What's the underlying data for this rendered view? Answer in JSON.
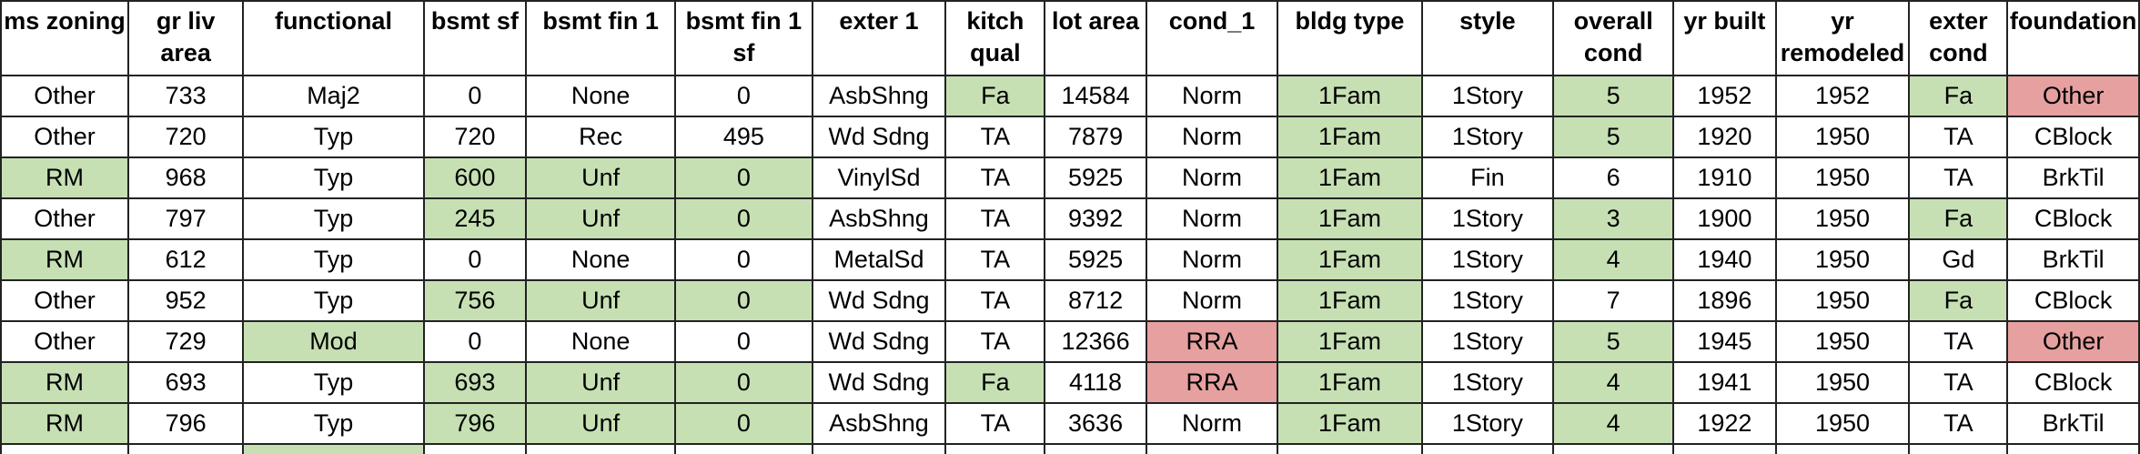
{
  "colors": {
    "highlight_green": "#c6e0b4",
    "highlight_red": "#e6a0a0",
    "border": "#222222"
  },
  "table": {
    "headers": [
      "ms zoning",
      "gr liv area",
      "functional",
      "bsmt sf",
      "bsmt fin 1",
      "bsmt fin 1 sf",
      "exter 1",
      "kitch qual",
      "lot area",
      "cond_1",
      "bldg type",
      "style",
      "overall cond",
      "yr built",
      "yr remodeled",
      "exter cond",
      "foundation"
    ],
    "rows": [
      {
        "cells": [
          "Other",
          "733",
          "Maj2",
          "0",
          "None",
          "0",
          "AsbShng",
          "Fa",
          "14584",
          "Norm",
          "1Fam",
          "1Story",
          "5",
          "1952",
          "1952",
          "Fa",
          "Other"
        ],
        "highlights": [
          "",
          "",
          "",
          "",
          "",
          "",
          "",
          "green",
          "",
          "",
          "green",
          "",
          "green",
          "",
          "",
          "green",
          "red"
        ]
      },
      {
        "cells": [
          "Other",
          "720",
          "Typ",
          "720",
          "Rec",
          "495",
          "Wd Sdng",
          "TA",
          "7879",
          "Norm",
          "1Fam",
          "1Story",
          "5",
          "1920",
          "1950",
          "TA",
          "CBlock"
        ],
        "highlights": [
          "",
          "",
          "",
          "",
          "",
          "",
          "",
          "",
          "",
          "",
          "green",
          "",
          "green",
          "",
          "",
          "",
          ""
        ]
      },
      {
        "cells": [
          "RM",
          "968",
          "Typ",
          "600",
          "Unf",
          "0",
          "VinylSd",
          "TA",
          "5925",
          "Norm",
          "1Fam",
          "Fin",
          "6",
          "1910",
          "1950",
          "TA",
          "BrkTil"
        ],
        "highlights": [
          "green",
          "",
          "",
          "green",
          "green",
          "green",
          "",
          "",
          "",
          "",
          "green",
          "",
          "",
          "",
          "",
          "",
          ""
        ]
      },
      {
        "cells": [
          "Other",
          "797",
          "Typ",
          "245",
          "Unf",
          "0",
          "AsbShng",
          "TA",
          "9392",
          "Norm",
          "1Fam",
          "1Story",
          "3",
          "1900",
          "1950",
          "Fa",
          "CBlock"
        ],
        "highlights": [
          "",
          "",
          "",
          "green",
          "green",
          "green",
          "",
          "",
          "",
          "",
          "green",
          "",
          "green",
          "",
          "",
          "green",
          ""
        ]
      },
      {
        "cells": [
          "RM",
          "612",
          "Typ",
          "0",
          "None",
          "0",
          "MetalSd",
          "TA",
          "5925",
          "Norm",
          "1Fam",
          "1Story",
          "4",
          "1940",
          "1950",
          "Gd",
          "BrkTil"
        ],
        "highlights": [
          "green",
          "",
          "",
          "",
          "",
          "",
          "",
          "",
          "",
          "",
          "green",
          "",
          "green",
          "",
          "",
          "",
          ""
        ]
      },
      {
        "cells": [
          "Other",
          "952",
          "Typ",
          "756",
          "Unf",
          "0",
          "Wd Sdng",
          "TA",
          "8712",
          "Norm",
          "1Fam",
          "1Story",
          "7",
          "1896",
          "1950",
          "Fa",
          "CBlock"
        ],
        "highlights": [
          "",
          "",
          "",
          "green",
          "green",
          "green",
          "",
          "",
          "",
          "",
          "green",
          "",
          "",
          "",
          "",
          "green",
          ""
        ]
      },
      {
        "cells": [
          "Other",
          "729",
          "Mod",
          "0",
          "None",
          "0",
          "Wd Sdng",
          "TA",
          "12366",
          "RRA",
          "1Fam",
          "1Story",
          "5",
          "1945",
          "1950",
          "TA",
          "Other"
        ],
        "highlights": [
          "",
          "",
          "green",
          "",
          "",
          "",
          "",
          "",
          "",
          "red",
          "green",
          "",
          "green",
          "",
          "",
          "",
          "red"
        ]
      },
      {
        "cells": [
          "RM",
          "693",
          "Typ",
          "693",
          "Unf",
          "0",
          "Wd Sdng",
          "Fa",
          "4118",
          "RRA",
          "1Fam",
          "1Story",
          "4",
          "1941",
          "1950",
          "TA",
          "CBlock"
        ],
        "highlights": [
          "green",
          "",
          "",
          "green",
          "green",
          "green",
          "",
          "green",
          "",
          "red",
          "green",
          "",
          "green",
          "",
          "",
          "",
          ""
        ]
      },
      {
        "cells": [
          "RM",
          "796",
          "Typ",
          "796",
          "Unf",
          "0",
          "AsbShng",
          "TA",
          "3636",
          "Norm",
          "1Fam",
          "1Story",
          "4",
          "1922",
          "1950",
          "TA",
          "BrkTil"
        ],
        "highlights": [
          "green",
          "",
          "",
          "green",
          "green",
          "green",
          "",
          "",
          "",
          "",
          "green",
          "",
          "green",
          "",
          "",
          "",
          ""
        ]
      }
    ],
    "partial_row_highlights": [
      "",
      "",
      "green",
      "",
      "",
      "",
      "",
      "",
      "",
      "",
      "",
      "",
      "",
      "",
      "",
      "",
      ""
    ]
  }
}
